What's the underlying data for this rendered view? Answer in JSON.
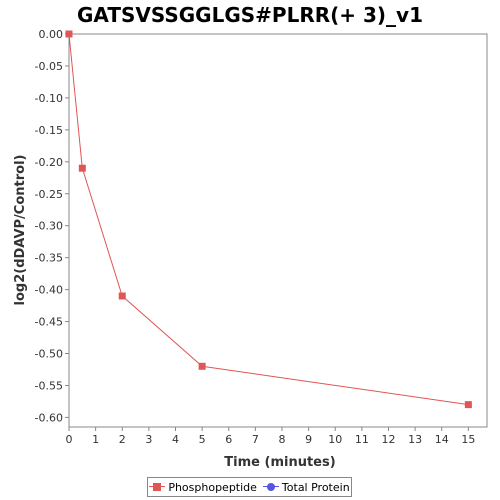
{
  "chart_data": {
    "type": "line",
    "title": "GATSVSSGGLGS#PLRR(+ 3)_v1",
    "xlabel": "Time (minutes)",
    "ylabel": "log2(dDAVP/Control)",
    "xlim": [
      0,
      15.7
    ],
    "ylim": [
      -0.615,
      0.0
    ],
    "x_ticks": [
      0,
      1,
      2,
      3,
      4,
      5,
      6,
      7,
      8,
      9,
      10,
      11,
      12,
      13,
      14,
      15
    ],
    "y_ticks": [
      0.0,
      -0.05,
      -0.1,
      -0.15,
      -0.2,
      -0.25,
      -0.3,
      -0.35,
      -0.4,
      -0.45,
      -0.5,
      -0.55,
      -0.6
    ],
    "y_tick_labels": [
      "0.00",
      "-0.05",
      "-0.10",
      "-0.15",
      "-0.20",
      "-0.25",
      "-0.30",
      "-0.35",
      "-0.40",
      "-0.45",
      "-0.50",
      "-0.55",
      "-0.60"
    ],
    "grid": false,
    "legend_position": "bottom",
    "series": [
      {
        "name": "Phosphopeptide",
        "color": "#e05555",
        "marker": "square",
        "x": [
          0,
          0.5,
          2,
          5,
          15
        ],
        "y": [
          0.0,
          -0.21,
          -0.41,
          -0.52,
          -0.58
        ]
      },
      {
        "name": "Total Protein",
        "color": "#5555e0",
        "marker": "circle",
        "x": [],
        "y": []
      }
    ]
  }
}
